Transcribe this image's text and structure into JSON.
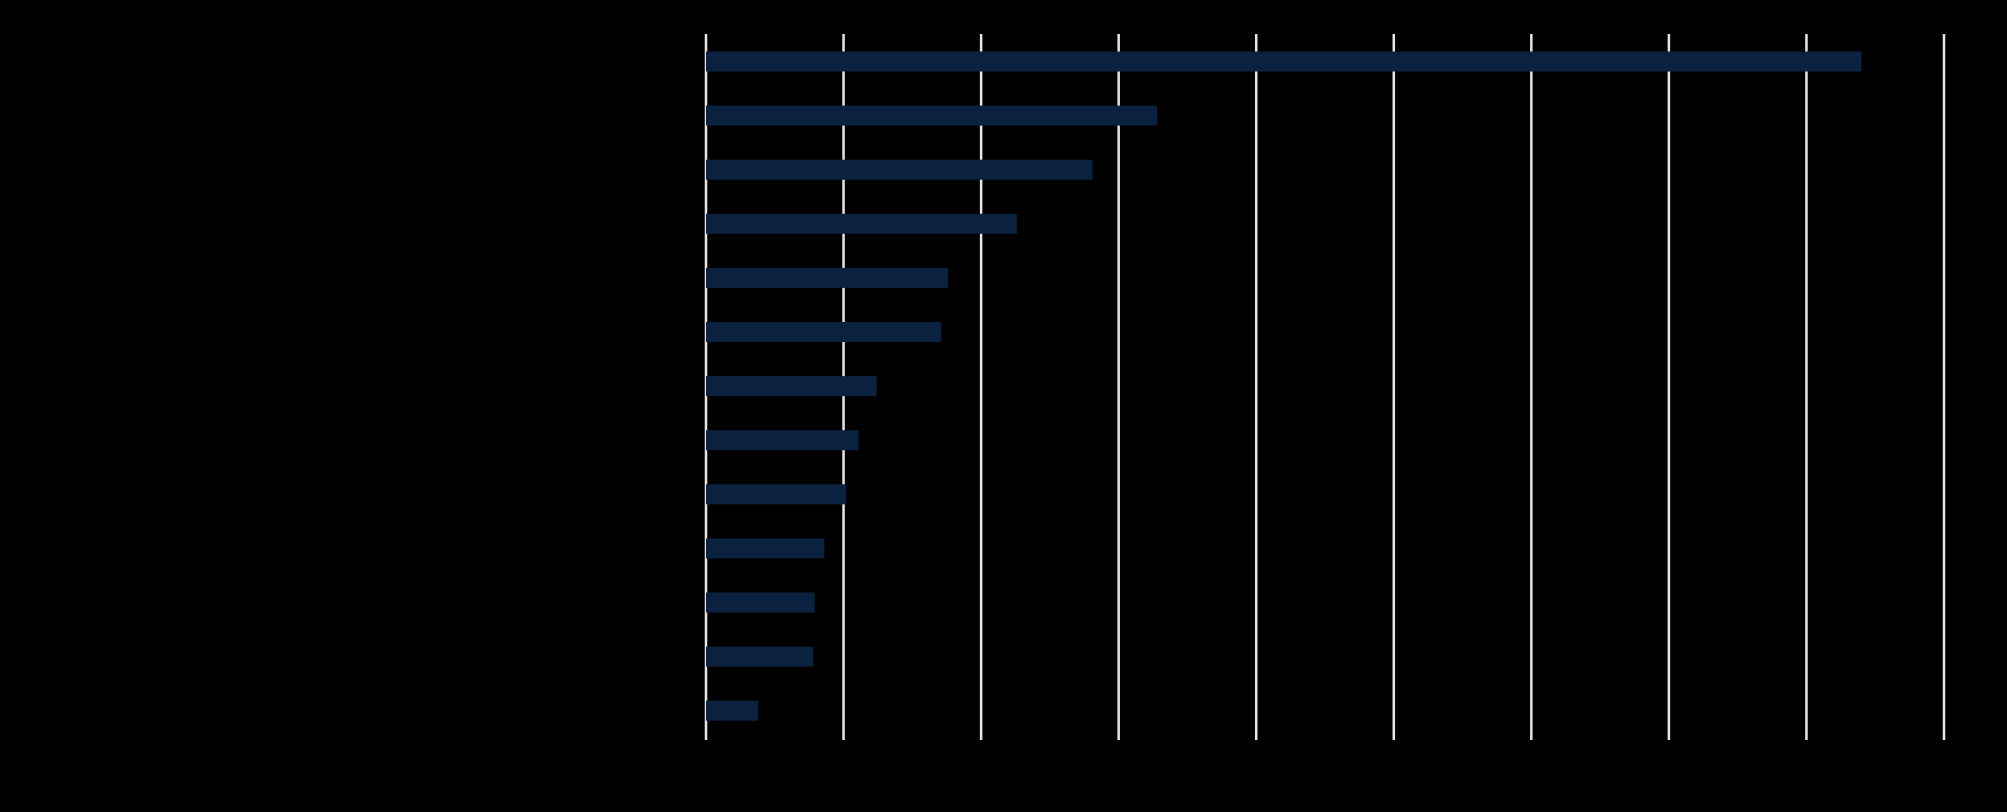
{
  "chart_data": {
    "type": "bar",
    "orientation": "horizontal",
    "categories": [
      "",
      "",
      "",
      "",
      "",
      "",
      "",
      "",
      "",
      "",
      "",
      "",
      ""
    ],
    "values": [
      42,
      16.4,
      14.05,
      11.3,
      8.8,
      8.55,
      6.2,
      5.55,
      5.1,
      4.3,
      3.95,
      3.9,
      1.9
    ],
    "xlim": [
      0,
      45
    ],
    "x_tick_step": 5,
    "grid": "vertical",
    "title": "",
    "xlabel": "",
    "ylabel": ""
  },
  "colors": {
    "background": "#000000",
    "bar": "#0a2240",
    "gridline": "#e6e6e6"
  }
}
